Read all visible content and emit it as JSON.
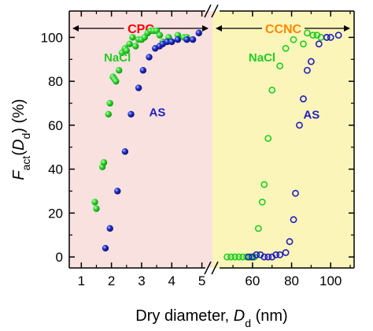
{
  "chart_data": {
    "type": "scatter",
    "y_axis": {
      "label_main": "F",
      "label_sub": "act",
      "label_mid": "(D",
      "label_sub2": "d",
      "label_end": ") (%)",
      "ylim": [
        -5,
        112
      ],
      "ticks": [
        "0",
        "20",
        "40",
        "60",
        "80",
        "100"
      ],
      "tick_values": [
        0,
        20,
        40,
        60,
        80,
        100
      ]
    },
    "x_axis": {
      "label_main": "Dry diameter, ",
      "label_italic": "D",
      "label_sub": "d",
      "label_end": " (nm)"
    },
    "panels": [
      {
        "title": "CPC",
        "title_color": "#ff0000",
        "background": "#f9e1df",
        "xlim": [
          0.6,
          5.35
        ],
        "ticks": [
          "1",
          "2",
          "3",
          "4",
          "5"
        ],
        "tick_values": [
          1,
          2,
          3,
          4,
          5
        ],
        "series": [
          {
            "name": "NaCl",
            "color": "#22cc22",
            "marker": "filled",
            "label_at": [
              1.75,
              89
            ],
            "points": [
              [
                1.45,
                25
              ],
              [
                1.5,
                22
              ],
              [
                1.7,
                41
              ],
              [
                1.75,
                43
              ],
              [
                1.9,
                65
              ],
              [
                1.95,
                70
              ],
              [
                2.05,
                82
              ],
              [
                2.1,
                81
              ],
              [
                2.15,
                80
              ],
              [
                2.25,
                85
              ],
              [
                2.35,
                93
              ],
              [
                2.45,
                95
              ],
              [
                2.5,
                94
              ],
              [
                2.6,
                97
              ],
              [
                2.7,
                100
              ],
              [
                2.8,
                96
              ],
              [
                2.9,
                99
              ],
              [
                3.0,
                99
              ],
              [
                3.1,
                100
              ],
              [
                3.2,
                102
              ],
              [
                3.3,
                103
              ],
              [
                3.4,
                103
              ],
              [
                3.5,
                103
              ],
              [
                3.6,
                101
              ],
              [
                3.7,
                98
              ],
              [
                3.9,
                100
              ],
              [
                4.2,
                101
              ],
              [
                4.4,
                100
              ],
              [
                4.5,
                100
              ]
            ]
          },
          {
            "name": "AS",
            "color": "#1f1fbf",
            "marker": "filled",
            "label_at": [
              3.25,
              64
            ],
            "points": [
              [
                1.8,
                4
              ],
              [
                1.95,
                13
              ],
              [
                2.2,
                30
              ],
              [
                2.45,
                48
              ],
              [
                2.65,
                65
              ],
              [
                2.9,
                77
              ],
              [
                3.05,
                85
              ],
              [
                3.25,
                91
              ],
              [
                3.45,
                95
              ],
              [
                3.6,
                96
              ],
              [
                3.7,
                97
              ],
              [
                3.85,
                98
              ],
              [
                4.0,
                98
              ],
              [
                4.2,
                99
              ],
              [
                4.5,
                99
              ],
              [
                4.7,
                99
              ],
              [
                4.9,
                102
              ]
            ]
          }
        ]
      },
      {
        "title": "CCNC",
        "title_color": "#ff8800",
        "background": "#fbf5b9",
        "xlim": [
          39.5,
          112
        ],
        "ticks": [
          "60",
          "80",
          "100"
        ],
        "tick_values": [
          60,
          80,
          100
        ],
        "series": [
          {
            "name": "NaCl",
            "color": "#22cc22",
            "marker": "open",
            "label_at": [
              58,
              89
            ],
            "points": [
              [
                47,
                0
              ],
              [
                49,
                0
              ],
              [
                51,
                0
              ],
              [
                53,
                0
              ],
              [
                55,
                0
              ],
              [
                57,
                0
              ],
              [
                59,
                0
              ],
              [
                61,
                0
              ],
              [
                63,
                13
              ],
              [
                65,
                25
              ],
              [
                66,
                33
              ],
              [
                68,
                54
              ],
              [
                70,
                76
              ],
              [
                74,
                87
              ],
              [
                77,
                95
              ],
              [
                81,
                99
              ],
              [
                86,
                97
              ],
              [
                88,
                102
              ],
              [
                91,
                101
              ],
              [
                93,
                101
              ],
              [
                95,
                100
              ],
              [
                98,
                100
              ]
            ]
          },
          {
            "name": "AS",
            "color": "#1f1fbf",
            "marker": "open",
            "label_at": [
              86,
              63
            ],
            "points": [
              [
                58,
                0
              ],
              [
                60,
                0
              ],
              [
                62,
                1
              ],
              [
                64,
                1
              ],
              [
                66,
                0
              ],
              [
                68,
                0
              ],
              [
                70,
                0
              ],
              [
                72,
                1
              ],
              [
                74,
                1
              ],
              [
                77,
                2
              ],
              [
                79,
                7
              ],
              [
                81,
                17
              ],
              [
                82,
                29
              ],
              [
                84,
                60
              ],
              [
                86,
                72
              ],
              [
                88,
                85
              ],
              [
                90,
                89
              ],
              [
                94,
                97
              ],
              [
                98,
                100
              ],
              [
                100,
                100
              ],
              [
                104,
                101
              ]
            ]
          }
        ]
      }
    ]
  }
}
